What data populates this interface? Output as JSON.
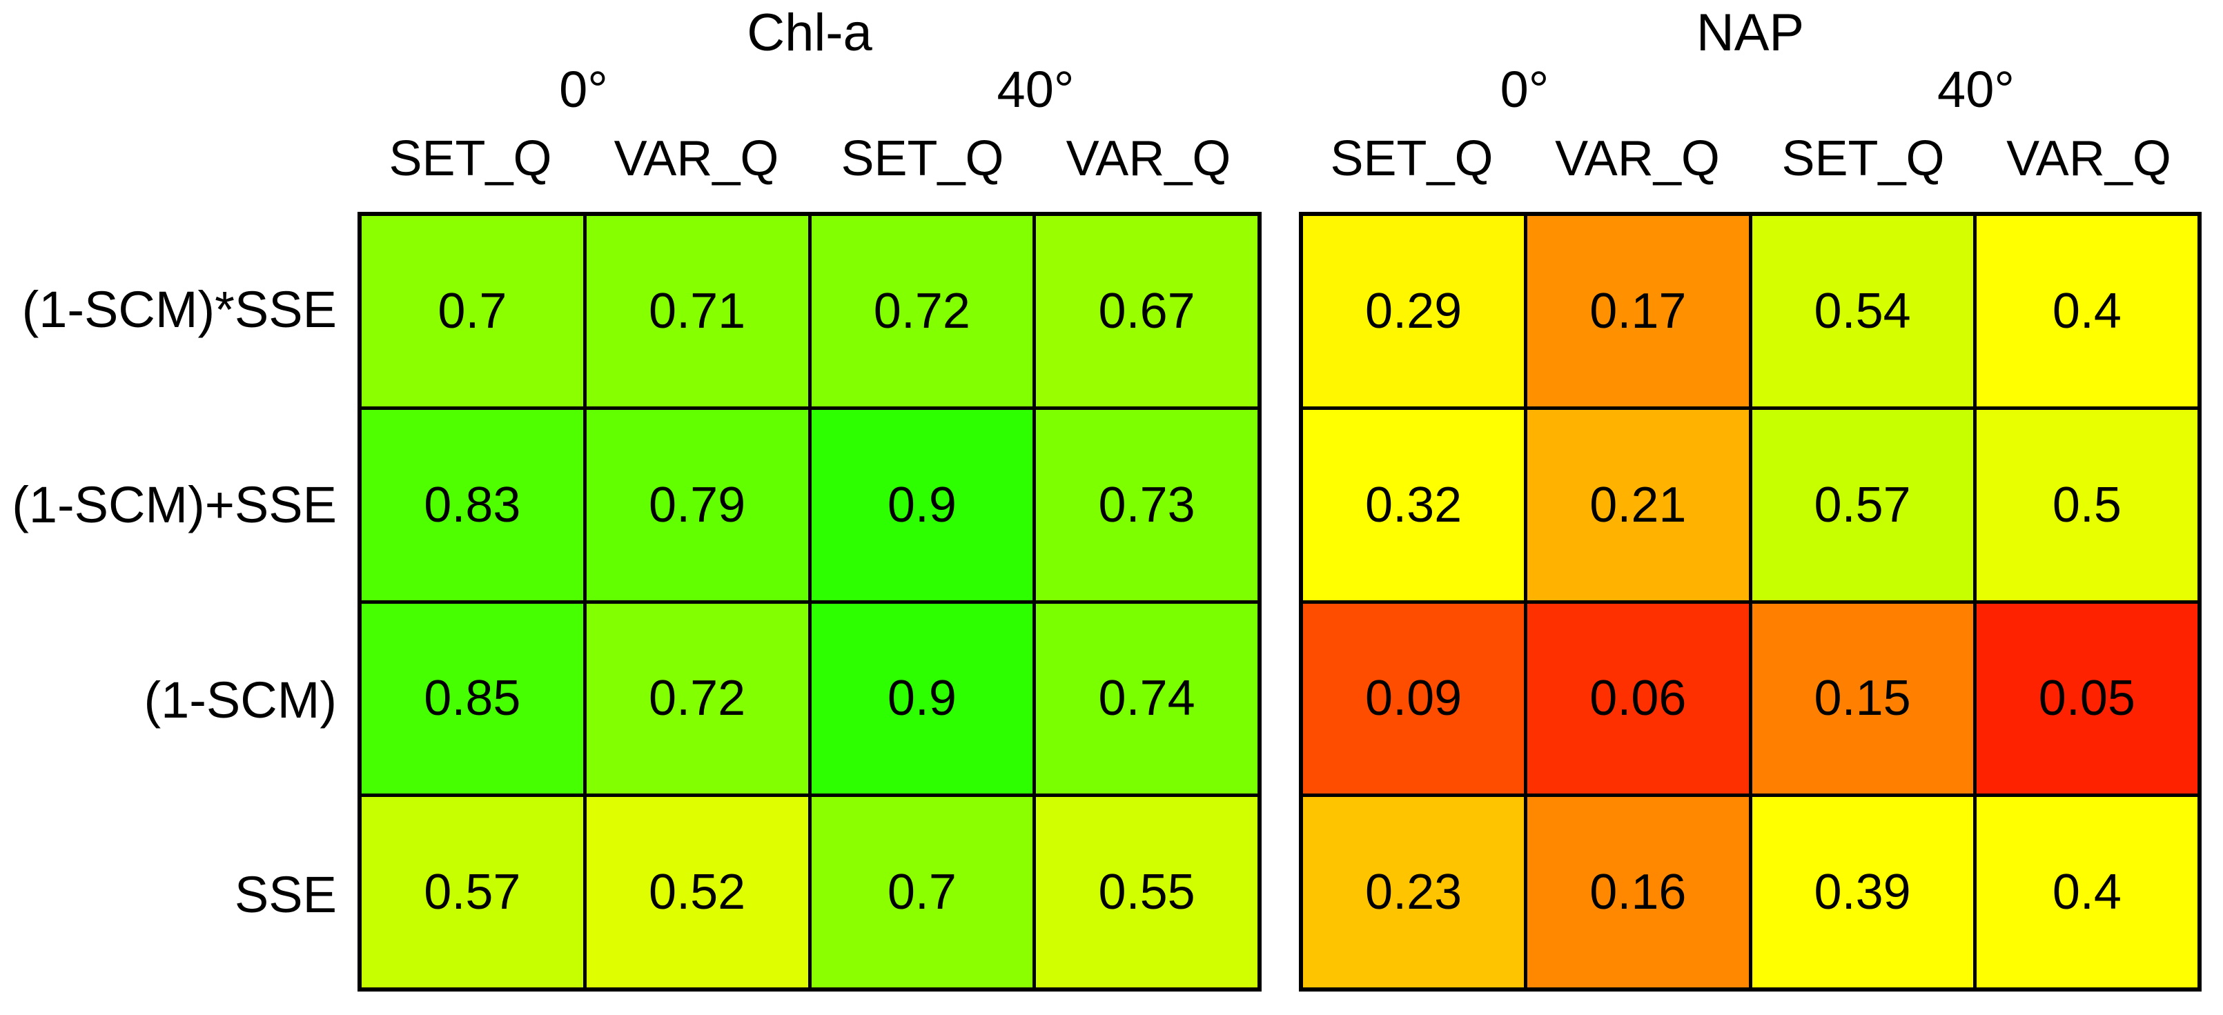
{
  "row_labels": [
    "(1-SCM)*SSE",
    "(1-SCM)+SSE",
    "(1-SCM)",
    "SSE"
  ],
  "panels": [
    {
      "title": "Chl-a",
      "angle_groups": [
        "0°",
        "40°"
      ],
      "col_headers": [
        "SET_Q",
        "VAR_Q",
        "SET_Q",
        "VAR_Q"
      ],
      "rows": [
        {
          "cells": [
            {
              "value": "0.7",
              "color": "#8bff00"
            },
            {
              "value": "0.71",
              "color": "#86ff00"
            },
            {
              "value": "0.72",
              "color": "#82ff00"
            },
            {
              "value": "0.67",
              "color": "#99ff00"
            }
          ]
        },
        {
          "cells": [
            {
              "value": "0.83",
              "color": "#4fff00"
            },
            {
              "value": "0.79",
              "color": "#61ff00"
            },
            {
              "value": "0.9",
              "color": "#2eff00"
            },
            {
              "value": "0.73",
              "color": "#7dff00"
            }
          ]
        },
        {
          "cells": [
            {
              "value": "0.85",
              "color": "#46ff00"
            },
            {
              "value": "0.72",
              "color": "#82ff00"
            },
            {
              "value": "0.9",
              "color": "#2eff00"
            },
            {
              "value": "0.74",
              "color": "#79ff00"
            }
          ]
        },
        {
          "cells": [
            {
              "value": "0.57",
              "color": "#c7ff00"
            },
            {
              "value": "0.52",
              "color": "#dfff00"
            },
            {
              "value": "0.7",
              "color": "#8bff00"
            },
            {
              "value": "0.55",
              "color": "#d1ff00"
            }
          ]
        }
      ]
    },
    {
      "title": "NAP",
      "angle_groups": [
        "0°",
        "40°"
      ],
      "col_headers": [
        "SET_Q",
        "VAR_Q",
        "SET_Q",
        "VAR_Q"
      ],
      "rows": [
        {
          "cells": [
            {
              "value": "0.29",
              "color": "#fff700"
            },
            {
              "value": "0.17",
              "color": "#ff9100"
            },
            {
              "value": "0.54",
              "color": "#d5ff00"
            },
            {
              "value": "0.4",
              "color": "#ffff00"
            }
          ]
        },
        {
          "cells": [
            {
              "value": "0.32",
              "color": "#ffff00"
            },
            {
              "value": "0.21",
              "color": "#ffb300"
            },
            {
              "value": "0.57",
              "color": "#c7ff00"
            },
            {
              "value": "0.5",
              "color": "#e8ff00"
            }
          ]
        },
        {
          "cells": [
            {
              "value": "0.09",
              "color": "#ff4d00"
            },
            {
              "value": "0.06",
              "color": "#ff3000"
            },
            {
              "value": "0.15",
              "color": "#ff8000"
            },
            {
              "value": "0.05",
              "color": "#ff2200"
            }
          ]
        },
        {
          "cells": [
            {
              "value": "0.23",
              "color": "#ffc400"
            },
            {
              "value": "0.16",
              "color": "#ff8800"
            },
            {
              "value": "0.39",
              "color": "#ffff00"
            },
            {
              "value": "0.4",
              "color": "#ffff00"
            }
          ]
        }
      ]
    }
  ],
  "colors": {
    "gridline": "#000000",
    "text": "#000000",
    "background": "#ffffff",
    "colormap_low": "#ff0000",
    "colormap_mid": "#ffff00",
    "colormap_high": "#2eff00"
  },
  "chart_data": {
    "type": "heatmap",
    "title": "",
    "panel_titles": [
      "Chl-a",
      "NAP"
    ],
    "row_labels": [
      "(1-SCM)*SSE",
      "(1-SCM)+SSE",
      "(1-SCM)",
      "SSE"
    ],
    "columns_per_panel": [
      {
        "angle": "0°",
        "metric": "SET_Q"
      },
      {
        "angle": "0°",
        "metric": "VAR_Q"
      },
      {
        "angle": "40°",
        "metric": "SET_Q"
      },
      {
        "angle": "40°",
        "metric": "VAR_Q"
      }
    ],
    "series": [
      {
        "name": "Chl-a",
        "values": [
          [
            0.7,
            0.71,
            0.72,
            0.67
          ],
          [
            0.83,
            0.79,
            0.9,
            0.73
          ],
          [
            0.85,
            0.72,
            0.9,
            0.74
          ],
          [
            0.57,
            0.52,
            0.7,
            0.55
          ]
        ]
      },
      {
        "name": "NAP",
        "values": [
          [
            0.29,
            0.17,
            0.54,
            0.4
          ],
          [
            0.32,
            0.21,
            0.57,
            0.5
          ],
          [
            0.09,
            0.06,
            0.15,
            0.05
          ],
          [
            0.23,
            0.16,
            0.39,
            0.4
          ]
        ]
      }
    ],
    "value_range": [
      0,
      1
    ],
    "colormap": "red (low) -> orange -> yellow (~0.3-0.4) -> chartreuse -> green (high)",
    "legend": "none",
    "grid": "black cell borders"
  }
}
